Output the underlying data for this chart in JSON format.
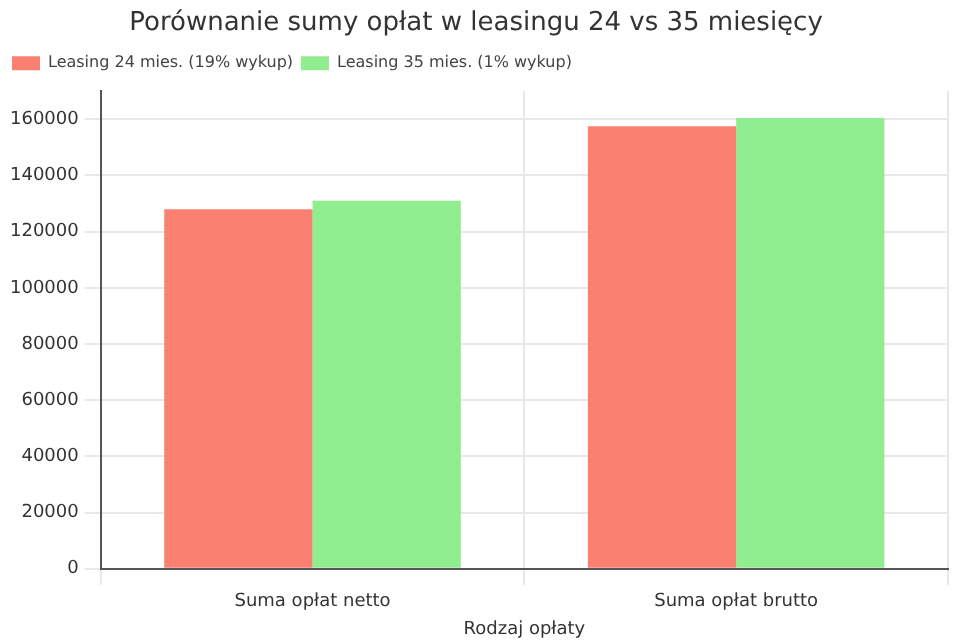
{
  "chart_data": {
    "type": "bar",
    "title": "Porównanie sumy opłat w leasingu 24 vs 35 miesięcy",
    "xlabel": "Rodzaj opłaty",
    "categories": [
      "Suma opłat netto",
      "Suma opłat brutto"
    ],
    "series": [
      {
        "name": "Leasing 24 mies. (19% wykup)",
        "color": "#fa8072",
        "values": [
          128000,
          157500
        ]
      },
      {
        "name": "Leasing 35 mies. (1% wykup)",
        "color": "#90ee90",
        "values": [
          131000,
          160500
        ]
      }
    ],
    "ylim": [
      0,
      170000
    ],
    "yticks": [
      0,
      20000,
      40000,
      60000,
      80000,
      100000,
      120000,
      140000,
      160000
    ],
    "grid": true,
    "legend": "top left"
  }
}
